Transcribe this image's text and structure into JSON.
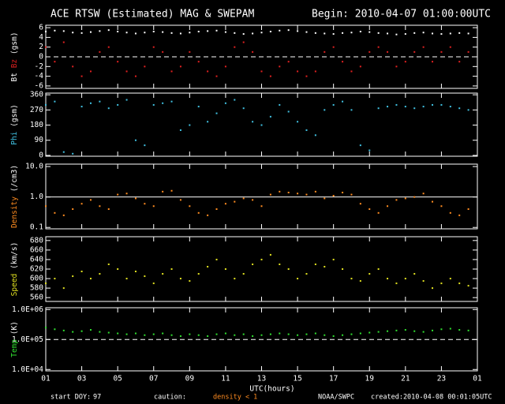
{
  "title": "ACE RTSW (Estimated) MAG & SWEPAM",
  "begin": "Begin: 2010-04-07 01:00:00UTC",
  "footer": {
    "doy_label": "start DOY:",
    "doy": 97,
    "caution": "caution:",
    "caution_note": "density < 1",
    "caution_color": "#ff8c20",
    "source": "NOAA/SWPC",
    "created": "created:2010-04-08 00:01:05UTC"
  },
  "x_axis": {
    "label": "UTC(hours)",
    "xlim": [
      1,
      25
    ],
    "xticks": [
      {
        "value": 1,
        "label": "01"
      },
      {
        "value": 3,
        "label": "03"
      },
      {
        "value": 5,
        "label": "05"
      },
      {
        "value": 7,
        "label": "07"
      },
      {
        "value": 9,
        "label": "09"
      },
      11,
      13,
      15,
      17,
      19,
      21,
      23,
      {
        "value": 25,
        "label": "01"
      }
    ],
    "x": [
      1,
      1.5,
      2,
      2.5,
      3,
      3.5,
      4,
      4.5,
      5,
      5.5,
      6,
      6.5,
      7,
      7.5,
      8,
      8.5,
      9,
      9.5,
      10,
      10.5,
      11,
      11.5,
      12,
      12.5,
      13,
      13.5,
      14,
      14.5,
      15,
      15.5,
      16,
      16.5,
      17,
      17.5,
      18,
      18.5,
      19,
      19.5,
      20,
      20.5,
      21,
      21.5,
      22,
      22.5,
      23,
      23.5,
      24,
      24.5
    ]
  },
  "chart_data": [
    {
      "type": "scatter",
      "ylabel_parts": [
        {
          "text": "Bt",
          "color": "#ffffff"
        },
        {
          "text": "Bz",
          "color": "#e02020"
        },
        {
          "text": "(gsm)",
          "color": "#ffffff"
        }
      ],
      "ylim": [
        -6.5,
        6.5
      ],
      "yticks": [
        -6,
        -4,
        -2,
        0,
        2,
        4,
        6
      ],
      "hline": {
        "value": 0,
        "style": "dashed"
      },
      "series": [
        {
          "color": "#ffffff",
          "values": [
            5.2,
            5.4,
            5.3,
            5.0,
            4.9,
            5.1,
            5.3,
            5.5,
            5.2,
            5.0,
            4.8,
            5.0,
            5.2,
            5.1,
            4.9,
            4.8,
            5.0,
            5.2,
            5.3,
            5.4,
            5.1,
            4.9,
            4.7,
            4.8,
            5.0,
            5.2,
            5.4,
            5.5,
            5.3,
            5.1,
            4.9,
            4.8,
            4.7,
            4.9,
            5.0,
            5.2,
            5.1,
            4.9,
            4.8,
            4.6,
            4.7,
            4.9,
            5.0,
            4.8,
            4.7,
            4.8,
            4.9,
            4.8
          ]
        },
        {
          "color": "#e02020",
          "values": [
            2,
            -1,
            3,
            -2,
            -4,
            -3,
            1,
            2,
            -1,
            -3,
            -4,
            -2,
            2,
            1,
            -3,
            -2,
            1,
            -1,
            -3,
            -4,
            -2,
            2,
            3,
            1,
            -3,
            -4,
            -2,
            -1,
            -3,
            -4,
            -3,
            1,
            2,
            -1,
            -3,
            -2,
            1,
            2,
            1,
            -2,
            -1,
            1,
            2,
            -1,
            1,
            2,
            -1,
            1
          ]
        }
      ]
    },
    {
      "type": "scatter",
      "ylabel_parts": [
        {
          "text": "Phi",
          "color": "#40c0e0"
        },
        {
          "text": "(gsm)",
          "color": "#ffffff"
        }
      ],
      "ylim": [
        -5,
        370
      ],
      "yticks": [
        0,
        90,
        180,
        270,
        360
      ],
      "series": [
        {
          "color": "#40c0e0",
          "values": [
            300,
            320,
            20,
            10,
            290,
            310,
            320,
            280,
            300,
            330,
            90,
            60,
            300,
            310,
            320,
            150,
            180,
            290,
            200,
            250,
            310,
            330,
            280,
            200,
            180,
            230,
            300,
            260,
            200,
            150,
            120,
            270,
            300,
            320,
            270,
            60,
            30,
            280,
            290,
            300,
            290,
            280,
            290,
            300,
            300,
            290,
            280,
            270
          ]
        }
      ]
    },
    {
      "type": "scatter",
      "log": true,
      "ylabel_parts": [
        {
          "text": "Density",
          "color": "#ff8c20"
        },
        {
          "text": "(/cm3)",
          "color": "#ffffff"
        }
      ],
      "ylim": [
        0.09,
        12
      ],
      "yticks": [
        0.1,
        {
          "value": 1,
          "label": "1.0"
        },
        {
          "value": 10,
          "label": "10.0"
        }
      ],
      "hline": {
        "value": 1,
        "style": "solid"
      },
      "series": [
        {
          "color": "#ff8c20",
          "values": [
            0.5,
            0.3,
            0.25,
            0.4,
            0.6,
            0.8,
            0.5,
            0.4,
            1.2,
            1.3,
            0.9,
            0.6,
            0.5,
            1.5,
            1.6,
            0.8,
            0.5,
            0.3,
            0.25,
            0.4,
            0.6,
            0.7,
            0.9,
            0.8,
            0.5,
            1.2,
            1.5,
            1.4,
            1.3,
            1.2,
            1.5,
            0.9,
            1.1,
            1.4,
            1.2,
            0.6,
            0.4,
            0.3,
            0.5,
            0.8,
            0.9,
            1.0,
            1.3,
            0.7,
            0.5,
            0.3,
            0.25,
            0.4
          ]
        }
      ]
    },
    {
      "type": "scatter",
      "ylabel_parts": [
        {
          "text": "Speed",
          "color": "#e0e020"
        },
        {
          "text": "(km/s)",
          "color": "#ffffff"
        }
      ],
      "ylim": [
        552,
        688
      ],
      "yticks": [
        560,
        580,
        600,
        620,
        640,
        660,
        680
      ],
      "series": [
        {
          "color": "#e0e020",
          "values": [
            590,
            600,
            580,
            605,
            615,
            600,
            610,
            630,
            620,
            600,
            615,
            605,
            590,
            610,
            620,
            600,
            595,
            610,
            625,
            640,
            620,
            600,
            610,
            630,
            640,
            650,
            630,
            620,
            600,
            610,
            630,
            625,
            640,
            620,
            600,
            595,
            610,
            620,
            600,
            590,
            600,
            610,
            595,
            580,
            590,
            600,
            590,
            585
          ]
        }
      ]
    },
    {
      "type": "scatter",
      "log": true,
      "ylabel_parts": [
        {
          "text": "Temp",
          "color": "#30e030"
        },
        {
          "text": "(K)",
          "color": "#ffffff"
        }
      ],
      "ylim": [
        9000,
        1150000
      ],
      "yticks": [
        {
          "value": 10000,
          "label": "1.0E+04"
        },
        {
          "value": 100000,
          "label": "1.0E+05"
        },
        {
          "value": 1000000,
          "label": "1.0E+06"
        }
      ],
      "hline": {
        "value": 100000,
        "style": "dashed"
      },
      "series": [
        {
          "color": "#30e030",
          "values": [
            250000,
            220000,
            200000,
            180000,
            190000,
            210000,
            180000,
            170000,
            160000,
            150000,
            160000,
            140000,
            150000,
            160000,
            140000,
            130000,
            150000,
            140000,
            130000,
            150000,
            160000,
            140000,
            150000,
            130000,
            140000,
            150000,
            160000,
            150000,
            140000,
            150000,
            160000,
            140000,
            130000,
            140000,
            150000,
            160000,
            170000,
            180000,
            190000,
            200000,
            210000,
            190000,
            180000,
            200000,
            220000,
            230000,
            210000,
            200000
          ]
        }
      ]
    }
  ]
}
